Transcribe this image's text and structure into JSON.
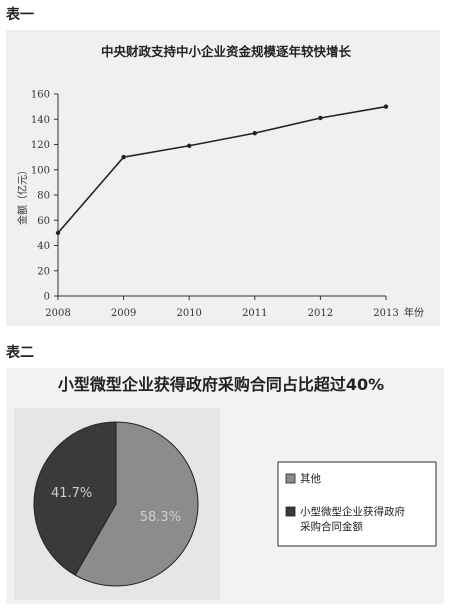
{
  "section1_label": "表一",
  "section2_label": "表二",
  "chart_data": [
    {
      "type": "line",
      "title": "中央财政支持中小企业资金规模逐年较快增长",
      "xlabel": "年份",
      "ylabel": "金额（亿元）",
      "x": [
        "2008",
        "2009",
        "2010",
        "2011",
        "2012",
        "2013"
      ],
      "series": [
        {
          "values": [
            50,
            110,
            119,
            129,
            141,
            150
          ]
        }
      ],
      "ylim": [
        0,
        160
      ],
      "yticks": [
        "0",
        "20",
        "40",
        "60",
        "80",
        "100",
        "120",
        "140",
        "160"
      ],
      "grid": false,
      "colors": {
        "line": "#222222"
      }
    },
    {
      "type": "pie",
      "title": "小型微型企业获得政府采购合同占比超过40%",
      "slices": [
        {
          "name": "其他",
          "value": 58.3,
          "label": "58.3%",
          "color": "#8c8c8c"
        },
        {
          "name": "小型微型企业获得政府采购合同金额",
          "value": 41.7,
          "label": "41.7%",
          "color": "#3a3a3a"
        }
      ],
      "legend": {
        "position": "right",
        "items": [
          {
            "lines": [
              "其他"
            ],
            "color": "#8c8c8c"
          },
          {
            "lines": [
              "小型微型企业获得政府",
              "采购合同金额"
            ],
            "color": "#3a3a3a"
          }
        ]
      }
    }
  ]
}
